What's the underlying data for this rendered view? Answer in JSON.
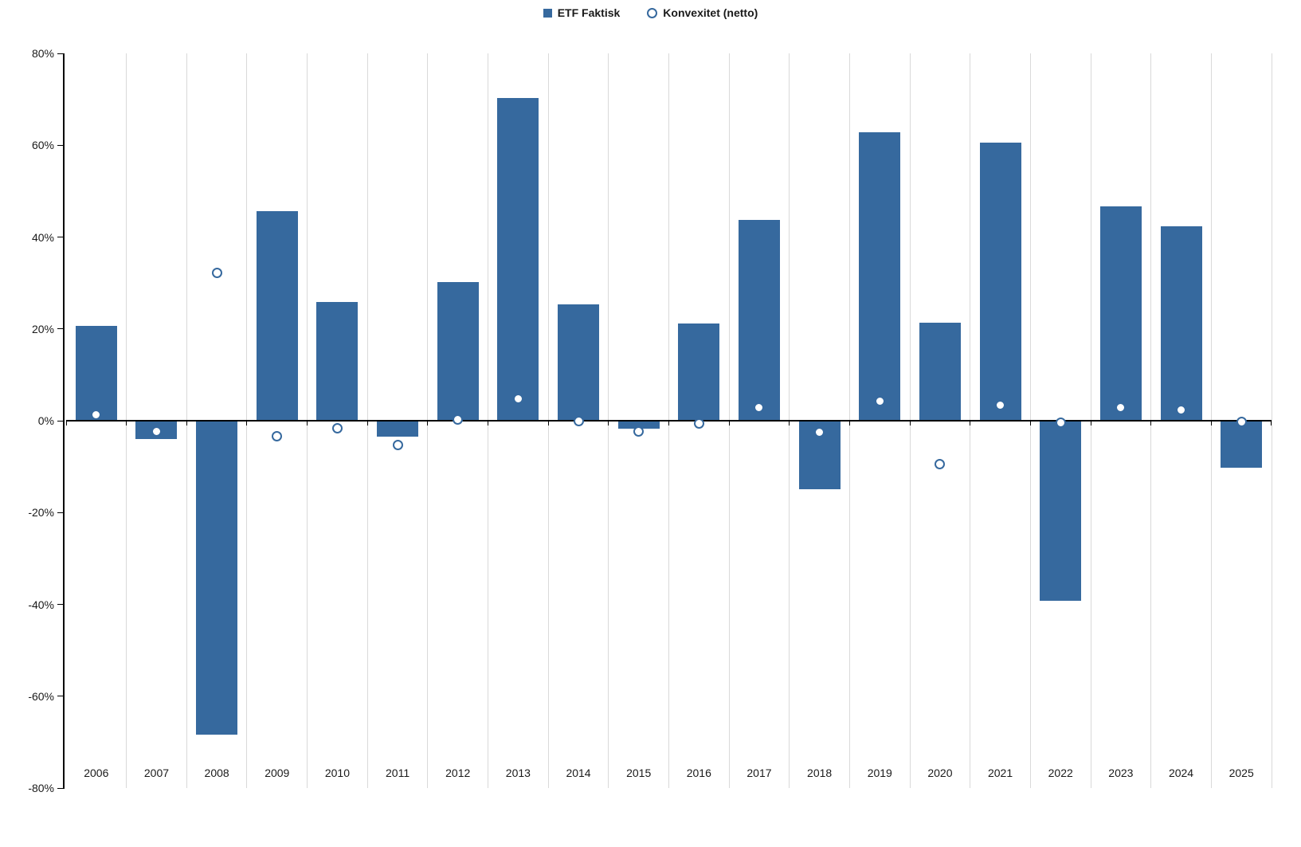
{
  "legend": {
    "series1_label": "ETF Faktisk",
    "series2_label": "Konvexitet (netto)"
  },
  "colors": {
    "bar": "#36699E",
    "marker_stroke": "#36699E",
    "marker_fill": "#FFFFFF",
    "gridline": "#D9D9D9",
    "axis": "#000000"
  },
  "chart_data": {
    "type": "bar",
    "title": "",
    "xlabel": "",
    "ylabel": "",
    "ylim": [
      -80,
      80
    ],
    "ytick_step": 20,
    "ytick_labels": [
      "80%",
      "60%",
      "40%",
      "20%",
      "0%",
      "-20%",
      "-40%",
      "-60%",
      "-80%"
    ],
    "grid": "vertical-only",
    "legend_position": "top-center",
    "categories": [
      "2006",
      "2007",
      "2008",
      "2009",
      "2010",
      "2011",
      "2012",
      "2013",
      "2014",
      "2015",
      "2016",
      "2017",
      "2018",
      "2019",
      "2020",
      "2021",
      "2022",
      "2023",
      "2024",
      "2025"
    ],
    "series": [
      {
        "name": "ETF Faktisk",
        "type": "bar",
        "values": [
          20.7,
          -4.0,
          -68.3,
          45.7,
          25.8,
          -3.5,
          30.2,
          70.3,
          25.3,
          -1.8,
          21.1,
          43.8,
          -15.0,
          62.8,
          21.4,
          60.5,
          -39.2,
          46.6,
          42.4,
          -10.3
        ]
      },
      {
        "name": "Konvexitet (netto)",
        "type": "scatter",
        "marker_style": "open-circle",
        "values": [
          1.3,
          -2.3,
          32.2,
          -3.3,
          -1.6,
          -5.3,
          0.3,
          4.8,
          0.0,
          -2.3,
          -0.6,
          2.9,
          -2.5,
          4.3,
          -9.4,
          3.4,
          -0.4,
          2.8,
          2.4,
          -0.3
        ]
      }
    ]
  }
}
